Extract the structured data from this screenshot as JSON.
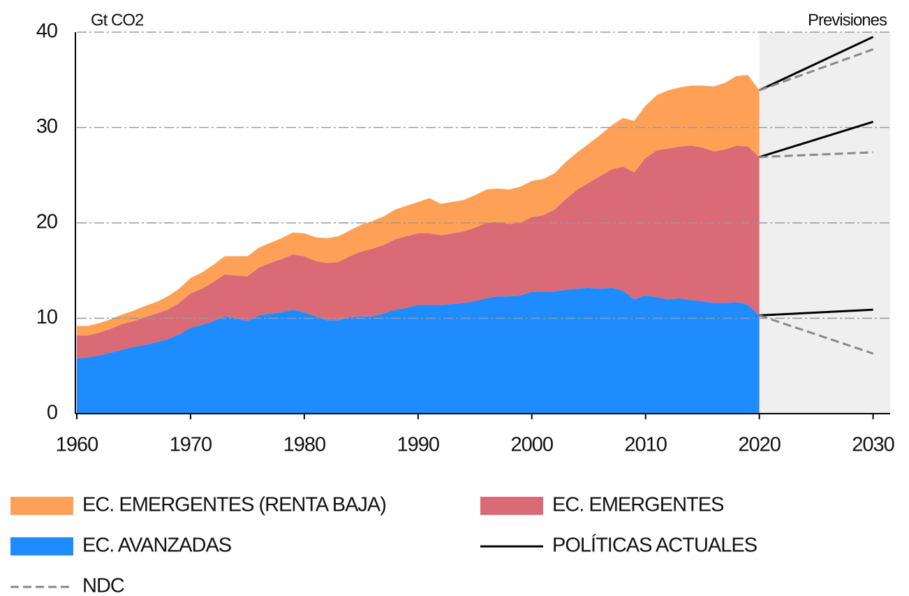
{
  "chart_data": {
    "type": "stacked_area",
    "y_label": "Gt CO2",
    "forecast_label": "Previsiones",
    "x": [
      1960,
      1961,
      1962,
      1963,
      1964,
      1965,
      1966,
      1967,
      1968,
      1969,
      1970,
      1971,
      1972,
      1973,
      1974,
      1975,
      1976,
      1977,
      1978,
      1979,
      1980,
      1981,
      1982,
      1983,
      1984,
      1985,
      1986,
      1987,
      1988,
      1989,
      1990,
      1991,
      1992,
      1993,
      1994,
      1995,
      1996,
      1997,
      1998,
      1999,
      2000,
      2001,
      2002,
      2003,
      2004,
      2005,
      2006,
      2007,
      2008,
      2009,
      2010,
      2011,
      2012,
      2013,
      2014,
      2015,
      2016,
      2017,
      2018,
      2019,
      2020
    ],
    "series": [
      {
        "name": "EC. AVANZADAS",
        "color": "#1e8cff",
        "values": [
          5.8,
          5.9,
          6.1,
          6.4,
          6.7,
          7.0,
          7.2,
          7.5,
          7.8,
          8.3,
          9.0,
          9.3,
          9.7,
          10.2,
          10.0,
          9.7,
          10.3,
          10.5,
          10.6,
          10.9,
          10.6,
          10.2,
          9.8,
          9.8,
          10.1,
          10.2,
          10.2,
          10.5,
          10.9,
          11.1,
          11.4,
          11.4,
          11.4,
          11.5,
          11.6,
          11.8,
          12.1,
          12.3,
          12.3,
          12.4,
          12.8,
          12.8,
          12.8,
          13.0,
          13.1,
          13.2,
          13.1,
          13.2,
          12.9,
          12.0,
          12.4,
          12.2,
          12.0,
          12.1,
          11.9,
          11.8,
          11.6,
          11.6,
          11.7,
          11.4,
          10.3
        ]
      },
      {
        "name": "EC. EMERGENTES",
        "color": "#d96a76",
        "values": [
          2.4,
          2.3,
          2.4,
          2.5,
          2.7,
          2.7,
          2.9,
          3.0,
          3.1,
          3.3,
          3.6,
          3.8,
          4.1,
          4.4,
          4.5,
          4.7,
          5.0,
          5.3,
          5.6,
          5.8,
          5.9,
          5.8,
          6.0,
          6.1,
          6.4,
          6.8,
          7.1,
          7.2,
          7.4,
          7.5,
          7.5,
          7.5,
          7.3,
          7.4,
          7.5,
          7.7,
          7.9,
          7.8,
          7.6,
          7.6,
          7.8,
          8.0,
          8.6,
          9.5,
          10.4,
          11.0,
          11.8,
          12.4,
          13.0,
          13.3,
          14.4,
          15.4,
          15.8,
          15.9,
          16.2,
          16.1,
          15.9,
          16.1,
          16.4,
          16.6,
          16.6
        ]
      },
      {
        "name": "EC. EMERGENTES (RENTA BAJA)",
        "color": "#ffa057",
        "values": [
          1.0,
          1.0,
          1.0,
          1.0,
          1.0,
          1.1,
          1.2,
          1.2,
          1.4,
          1.5,
          1.6,
          1.7,
          1.8,
          1.9,
          2.0,
          2.1,
          2.1,
          2.1,
          2.2,
          2.3,
          2.4,
          2.5,
          2.6,
          2.7,
          2.7,
          2.8,
          2.9,
          3.0,
          3.1,
          3.2,
          3.3,
          3.7,
          3.3,
          3.3,
          3.3,
          3.4,
          3.5,
          3.5,
          3.6,
          3.8,
          3.8,
          3.8,
          3.8,
          3.9,
          3.9,
          4.1,
          4.3,
          4.6,
          5.1,
          5.4,
          5.5,
          5.8,
          6.1,
          6.2,
          6.3,
          6.5,
          6.8,
          7.0,
          7.3,
          7.5,
          7.0
        ]
      }
    ],
    "projection_x": [
      2020,
      2030
    ],
    "projections": [
      {
        "name": "POLÍTICAS ACTUALES",
        "color": "#000000",
        "dashed": false,
        "lines": [
          [
            33.9,
            39.5
          ],
          [
            26.9,
            30.6
          ],
          [
            10.3,
            10.9
          ]
        ]
      },
      {
        "name": "NDC",
        "color": "#888888",
        "dashed": true,
        "lines": [
          [
            33.9,
            38.2
          ],
          [
            26.9,
            27.4
          ],
          [
            10.3,
            6.3
          ]
        ]
      }
    ],
    "xlim": [
      1960,
      2031.5
    ],
    "xticks": [
      1960,
      1970,
      1980,
      1990,
      2000,
      2010,
      2020,
      2030
    ],
    "ylim": [
      0,
      40
    ],
    "yticks": [
      0,
      10,
      20,
      30,
      40
    ],
    "grid": true
  }
}
